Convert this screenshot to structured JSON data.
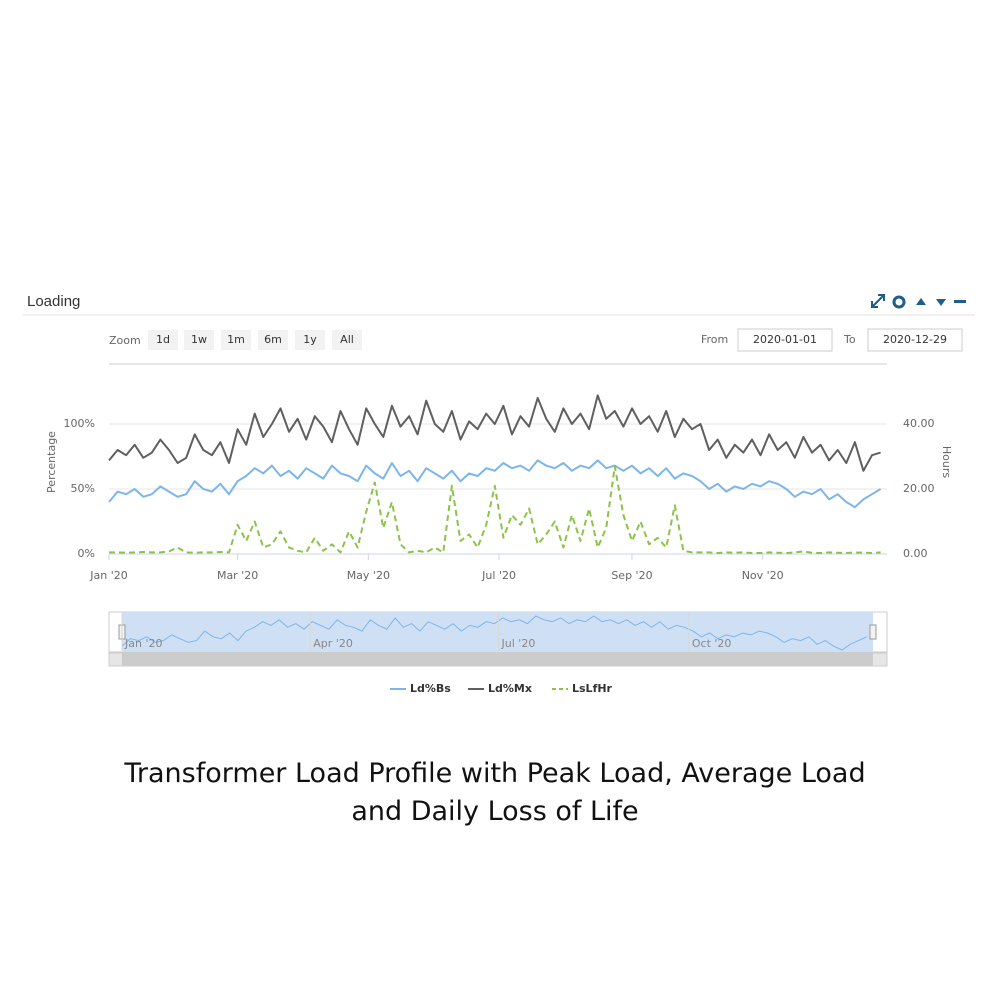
{
  "header": {
    "title": "Loading"
  },
  "range_selector": {
    "zoom_label": "Zoom",
    "buttons": [
      "1d",
      "1w",
      "1m",
      "6m",
      "1y",
      "All"
    ],
    "from_label": "From",
    "from": "2020-01-01",
    "to_label": "To",
    "to": "2020-12-29"
  },
  "chart_data": {
    "type": "line",
    "title": "Transformer Load Profile with Peak Load, Average Load and Daily Loss of Life",
    "y_label": "Percentage",
    "y2_label": "Hours",
    "x": [
      0,
      4,
      8,
      12,
      16,
      20,
      24,
      28,
      32,
      36,
      40,
      44,
      48,
      52,
      56,
      60,
      64,
      68,
      72,
      76,
      80,
      84,
      88,
      92,
      96,
      100,
      104,
      108,
      112,
      116,
      120,
      124,
      128,
      132,
      136,
      140,
      144,
      148,
      152,
      156,
      160,
      164,
      168,
      172,
      176,
      180,
      184,
      188,
      192,
      196,
      200,
      204,
      208,
      212,
      216,
      220,
      224,
      228,
      232,
      236,
      240,
      244,
      248,
      252,
      256,
      260,
      264,
      268,
      272,
      276,
      280,
      284,
      288,
      292,
      296,
      300,
      304,
      308,
      312,
      316,
      320,
      324,
      328,
      332,
      336,
      340,
      344,
      348,
      352,
      356,
      360
    ],
    "xlim": [
      0,
      363
    ],
    "xticks": [
      {
        "value": 0,
        "label": "Jan '20"
      },
      {
        "value": 60,
        "label": "Mar '20"
      },
      {
        "value": 121,
        "label": "May '20"
      },
      {
        "value": 182,
        "label": "Jul '20"
      },
      {
        "value": 244,
        "label": "Sep '20"
      },
      {
        "value": 305,
        "label": "Nov '20"
      }
    ],
    "ylim": [
      0,
      150
    ],
    "yticks": [
      {
        "value": 0,
        "label": "0%"
      },
      {
        "value": 50,
        "label": "50%"
      },
      {
        "value": 100,
        "label": "100%"
      }
    ],
    "y2lim": [
      0,
      60
    ],
    "y2ticks": [
      {
        "value": 0,
        "label": "0.00"
      },
      {
        "value": 20,
        "label": "20.00"
      },
      {
        "value": 40,
        "label": "40.00"
      }
    ],
    "grid": true,
    "series": [
      {
        "name": "Ld%Bs",
        "color": "#7cb5ec",
        "values": [
          40,
          48,
          46,
          50,
          44,
          46,
          52,
          48,
          44,
          46,
          56,
          50,
          48,
          54,
          46,
          56,
          60,
          66,
          62,
          68,
          60,
          64,
          58,
          66,
          62,
          58,
          68,
          62,
          60,
          56,
          68,
          62,
          58,
          70,
          60,
          64,
          56,
          66,
          62,
          58,
          64,
          56,
          62,
          60,
          66,
          64,
          70,
          66,
          68,
          64,
          72,
          68,
          66,
          70,
          64,
          68,
          66,
          72,
          66,
          68,
          64,
          68,
          62,
          66,
          60,
          66,
          58,
          62,
          60,
          56,
          50,
          54,
          48,
          52,
          50,
          54,
          52,
          56,
          54,
          50,
          44,
          48,
          46,
          50,
          42,
          46,
          40,
          36,
          42,
          46,
          50
        ]
      },
      {
        "name": "Ld%Mx",
        "color": "#5f5f5f",
        "values": [
          72,
          80,
          76,
          84,
          74,
          78,
          88,
          80,
          70,
          74,
          92,
          80,
          76,
          86,
          70,
          96,
          84,
          108,
          90,
          100,
          112,
          94,
          104,
          88,
          106,
          98,
          86,
          110,
          96,
          84,
          112,
          100,
          90,
          114,
          98,
          106,
          92,
          118,
          100,
          94,
          110,
          88,
          102,
          96,
          108,
          100,
          114,
          92,
          106,
          98,
          120,
          104,
          94,
          112,
          100,
          108,
          96,
          122,
          104,
          110,
          98,
          112,
          100,
          106,
          94,
          110,
          90,
          104,
          96,
          100,
          80,
          88,
          74,
          84,
          78,
          88,
          76,
          92,
          80,
          86,
          74,
          90,
          78,
          84,
          72,
          80,
          70,
          86,
          64,
          76,
          78
        ]
      },
      {
        "name": "LsLfHr",
        "color": "#8bc34a",
        "axis": "y2",
        "dashed": true,
        "values": [
          0.5,
          0.5,
          0.4,
          0.5,
          0.6,
          0.5,
          0.5,
          0.8,
          2,
          0.5,
          0.4,
          0.5,
          0.5,
          0.6,
          0.5,
          9,
          4,
          10,
          2,
          3,
          7,
          2,
          1,
          0.5,
          5,
          1,
          3,
          0.5,
          7,
          2,
          13,
          22,
          8,
          16,
          3,
          0.5,
          1,
          0.5,
          2,
          0.5,
          21,
          4,
          6,
          2,
          9,
          21,
          5,
          12,
          9,
          14,
          3,
          6,
          10,
          2,
          12,
          4,
          14,
          2,
          8,
          27,
          12,
          4,
          10,
          3,
          5,
          2,
          15,
          1,
          0.5,
          0.5,
          0.5,
          0.3,
          0.5,
          0.4,
          0.5,
          0.3,
          0.3,
          0.5,
          0.4,
          0.3,
          0.5,
          0.8,
          0.4,
          0.3,
          0.5,
          0.4,
          0.3,
          0.5,
          0.4,
          0.3,
          0.5
        ]
      }
    ],
    "navigator": {
      "series": 0,
      "xticks": [
        {
          "value": 0,
          "label": "Jan '20"
        },
        {
          "value": 91,
          "label": "Apr '20"
        },
        {
          "value": 182,
          "label": "Jul '20"
        },
        {
          "value": 274,
          "label": "Oct '20"
        }
      ]
    }
  }
}
